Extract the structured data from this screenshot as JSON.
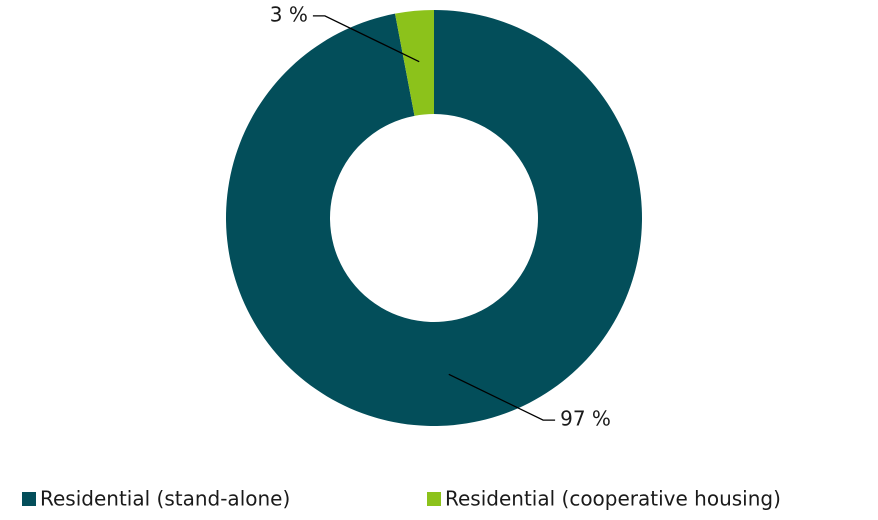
{
  "chart_data": {
    "type": "donut",
    "categories": [
      "Residential (stand-alone)",
      "Residential (cooperative housing)"
    ],
    "values": [
      97,
      3
    ],
    "value_labels": [
      "97 %",
      "3 %"
    ],
    "colors": [
      "#034e5a",
      "#8cc21b"
    ]
  }
}
